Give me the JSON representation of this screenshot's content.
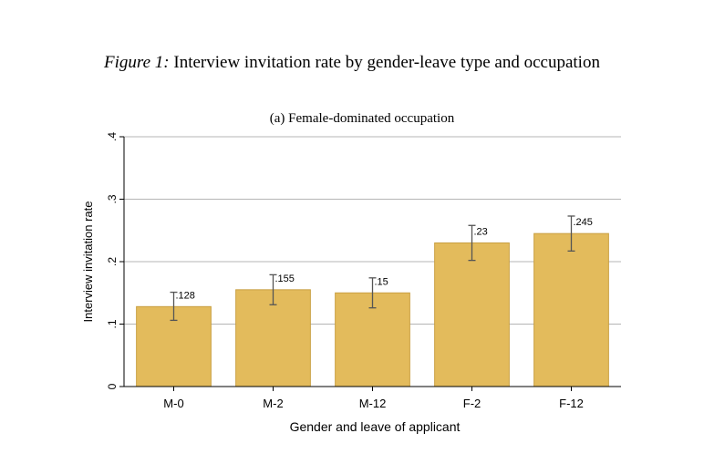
{
  "figure": {
    "label": "Figure 1:",
    "title": "Interview invitation rate by gender-leave type and occupation"
  },
  "chart_data": {
    "type": "bar",
    "title": "(a) Female-dominated occupation",
    "xlabel": "Gender and leave of applicant",
    "ylabel": "Interview invitation rate",
    "categories": [
      "M-0",
      "M-2",
      "M-12",
      "F-2",
      "F-12"
    ],
    "values": [
      0.128,
      0.155,
      0.15,
      0.23,
      0.245
    ],
    "value_labels": [
      ".128",
      ".155",
      ".15",
      ".23",
      ".245"
    ],
    "ci_low": [
      0.106,
      0.131,
      0.126,
      0.202,
      0.217
    ],
    "ci_high": [
      0.151,
      0.179,
      0.174,
      0.258,
      0.273
    ],
    "ylim": [
      0,
      0.4
    ],
    "yticks": [
      0,
      0.1,
      0.2,
      0.3,
      0.4
    ],
    "ytick_labels": [
      "0",
      ".1",
      ".2",
      ".3",
      ".4"
    ],
    "grid": true,
    "bar_color": "#e3bb5c",
    "bar_edge_color": "#c9a043",
    "errorbar_color": "#555555"
  }
}
